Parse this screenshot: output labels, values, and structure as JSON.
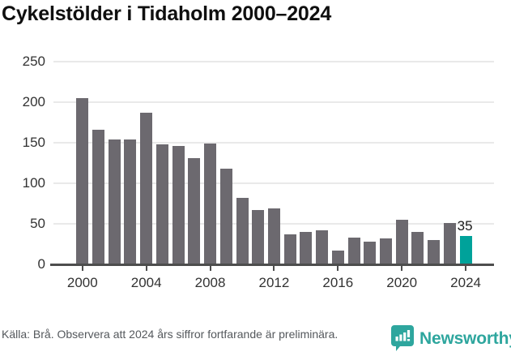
{
  "title": "Cykelstölder i Tidaholm 2000–2024",
  "chart_data": {
    "type": "bar",
    "title": "Cykelstölder i Tidaholm 2000–2024",
    "x": [
      2000,
      2001,
      2002,
      2003,
      2004,
      2005,
      2006,
      2007,
      2008,
      2009,
      2010,
      2011,
      2012,
      2013,
      2014,
      2015,
      2016,
      2017,
      2018,
      2019,
      2020,
      2021,
      2022,
      2023,
      2024
    ],
    "values": [
      205,
      166,
      154,
      154,
      187,
      148,
      146,
      131,
      149,
      118,
      82,
      67,
      69,
      37,
      40,
      42,
      17,
      33,
      28,
      32,
      55,
      40,
      30,
      51,
      35
    ],
    "highlight_index": 24,
    "highlight_value_label": "35",
    "xlabel": "",
    "ylabel": "",
    "ylim": [
      0,
      250
    ],
    "yticks": [
      0,
      50,
      100,
      150,
      200,
      250
    ],
    "xticks": [
      2000,
      2004,
      2008,
      2012,
      2016,
      2020,
      2024
    ],
    "grid": true,
    "legend": false,
    "bar_color": "#6c696f",
    "highlight_color": "#00a29a"
  },
  "footer": {
    "source_text": "Källa: Brå. Observera att 2024 års siffror fortfarande är preliminära.",
    "brand_name": "Newsworthy"
  },
  "colors": {
    "bar_gray": "#6c696f",
    "bar_teal": "#00a29a",
    "brand_teal": "#2ea69e",
    "axis": "#4d4d4d",
    "gridline": "#e9e9e9",
    "title_text": "#0f0f0f",
    "tick_text": "#333333",
    "footer_text": "#54585c"
  }
}
